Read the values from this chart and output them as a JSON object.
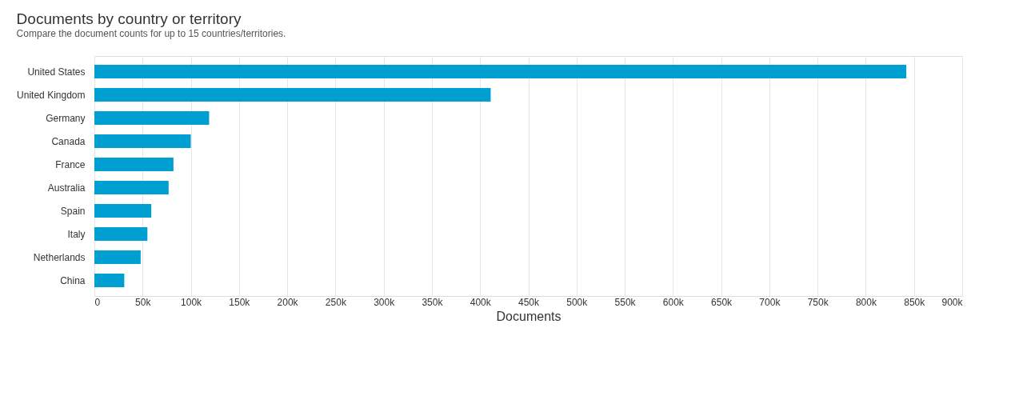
{
  "chart_data": {
    "type": "bar",
    "orientation": "horizontal",
    "title": "Documents by country or territory",
    "subtitle": "Compare the document counts for up to 15 countries/territories.",
    "xlabel": "Documents",
    "categories": [
      "United States",
      "United Kingdom",
      "Germany",
      "Canada",
      "France",
      "Australia",
      "Spain",
      "Italy",
      "Netherlands",
      "China"
    ],
    "values": [
      842000,
      411000,
      119000,
      100000,
      82000,
      77000,
      59000,
      55000,
      48000,
      31000
    ],
    "color": "#009fd1",
    "xlim": [
      0,
      900000
    ],
    "xticks": [
      0,
      {
        "value": 50000,
        "label": "50k"
      },
      {
        "value": 100000,
        "label": "100k"
      },
      {
        "value": 150000,
        "label": "150k"
      },
      {
        "value": 200000,
        "label": "200k"
      },
      {
        "value": 250000,
        "label": "250k"
      },
      {
        "value": 300000,
        "label": "300k"
      },
      {
        "value": 350000,
        "label": "350k"
      },
      {
        "value": 400000,
        "label": "400k"
      },
      {
        "value": 450000,
        "label": "450k"
      },
      {
        "value": 500000,
        "label": "500k"
      },
      {
        "value": 550000,
        "label": "550k"
      },
      {
        "value": 600000,
        "label": "600k"
      },
      {
        "value": 650000,
        "label": "650k"
      },
      {
        "value": 700000,
        "label": "700k"
      },
      {
        "value": 750000,
        "label": "750k"
      },
      {
        "value": 800000,
        "label": "800k"
      },
      {
        "value": 850000,
        "label": "850k"
      },
      {
        "value": 900000,
        "label": "900k"
      }
    ],
    "grid": "x"
  }
}
